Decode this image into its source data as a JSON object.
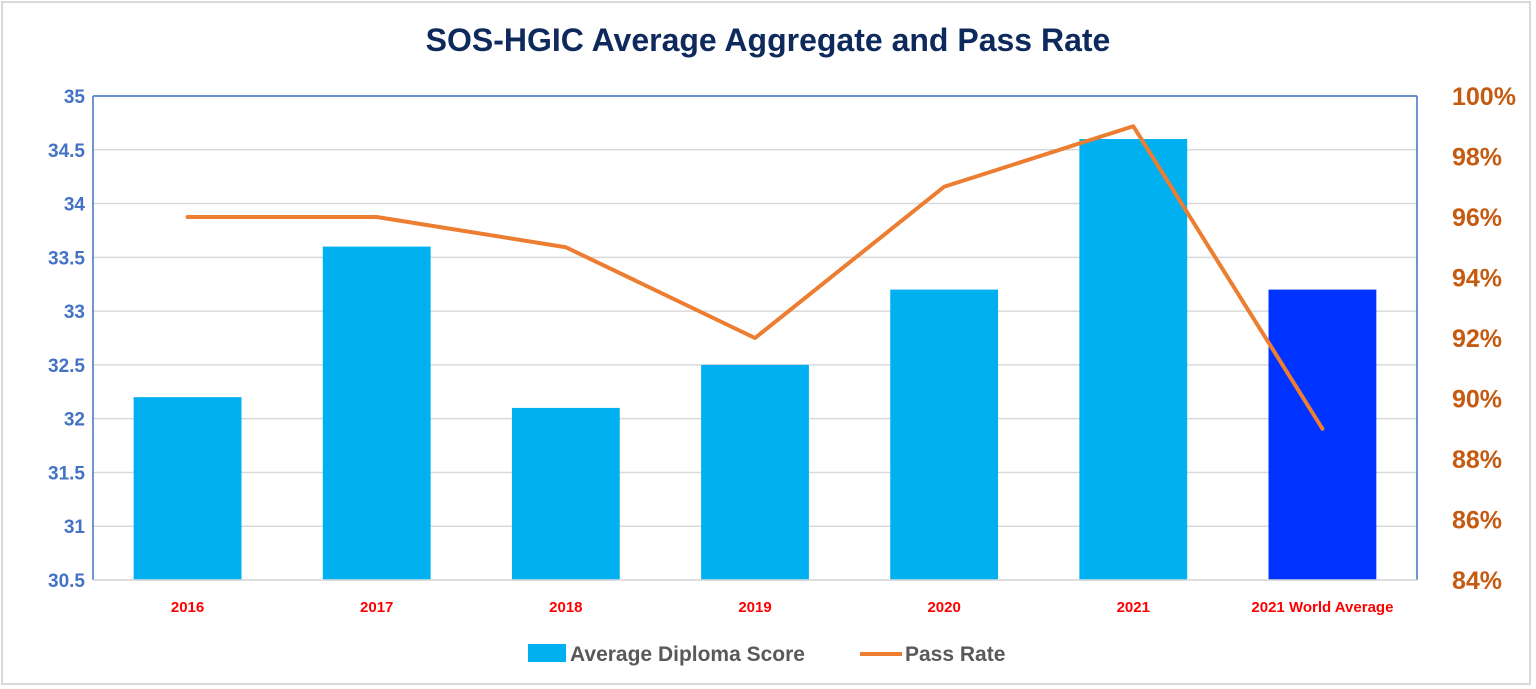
{
  "chart_data": {
    "type": "bar",
    "title": "SOS-HGIC Average Aggregate and Pass Rate",
    "xlabel": "",
    "ylabel": "",
    "y2label": "",
    "categories": [
      "2016",
      "2017",
      "2018",
      "2019",
      "2020",
      "2021",
      "2021 World Average"
    ],
    "series": [
      {
        "name": "Average Diploma Score",
        "type": "bar",
        "axis": "left",
        "color": "#00b0f0",
        "highlight_color": "#0033ff",
        "highlight_index": 6,
        "values": [
          32.2,
          33.6,
          32.1,
          32.5,
          33.2,
          34.6,
          33.2
        ]
      },
      {
        "name": "Pass Rate",
        "type": "line",
        "axis": "right",
        "color": "#ed7d31",
        "values": [
          0.96,
          0.96,
          0.95,
          0.92,
          0.97,
          0.99,
          0.89
        ]
      }
    ],
    "ylim": [
      30.5,
      35
    ],
    "y_ticks": [
      "30.5",
      "31",
      "31.5",
      "32",
      "32.5",
      "33",
      "33.5",
      "34",
      "34.5",
      "35"
    ],
    "y2lim": [
      0.84,
      1.0
    ],
    "y2_ticks": [
      "84%",
      "86%",
      "88%",
      "90%",
      "92%",
      "94%",
      "96%",
      "98%",
      "100%"
    ],
    "grid": true,
    "legend": "bottom",
    "colors": {
      "title": "#0e2a5c",
      "left_axis": "#4472c4",
      "right_axis": "#c55a11",
      "x_labels": "#ff0000",
      "legend_text": "#595959",
      "gridline": "#d9d9d9",
      "plot_border": "#4472c4"
    }
  }
}
